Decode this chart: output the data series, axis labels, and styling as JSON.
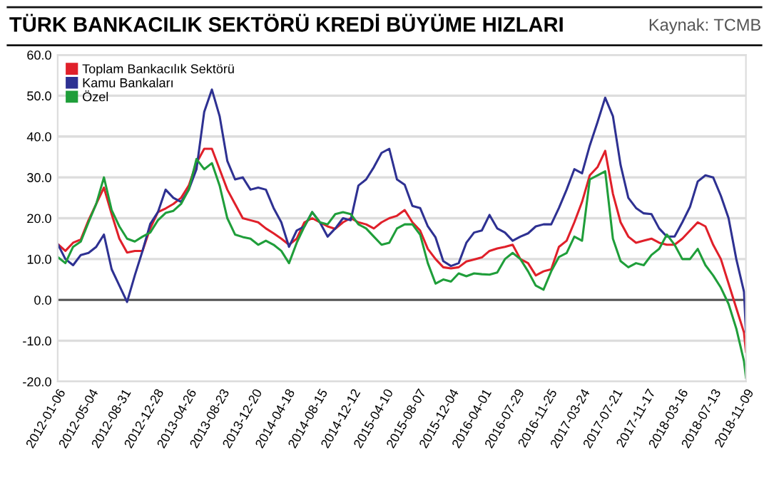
{
  "chart_data": {
    "type": "line",
    "title": "TÜRK BANKACILIK SEKTÖRÜ KREDİ BÜYÜME HIZLARI",
    "annotations": [
      "Kaynak: TCMB"
    ],
    "x": [
      "2012-01-06",
      "2012-02-03",
      "2012-03-02",
      "2012-03-30",
      "2012-04-27",
      "2012-05-25",
      "2012-06-22",
      "2012-07-20",
      "2012-08-17",
      "2012-09-14",
      "2012-10-12",
      "2012-11-09",
      "2012-12-07",
      "2013-01-04",
      "2013-02-01",
      "2013-03-01",
      "2013-03-29",
      "2013-04-26",
      "2013-05-24",
      "2013-06-21",
      "2013-07-19",
      "2013-08-16",
      "2013-09-13",
      "2013-10-11",
      "2013-11-08",
      "2013-12-06",
      "2014-01-03",
      "2014-01-31",
      "2014-02-28",
      "2014-03-28",
      "2014-04-25",
      "2014-05-23",
      "2014-06-20",
      "2014-07-18",
      "2014-08-15",
      "2014-09-12",
      "2014-10-10",
      "2014-11-07",
      "2014-12-05",
      "2015-01-02",
      "2015-01-30",
      "2015-02-27",
      "2015-03-27",
      "2015-04-24",
      "2015-05-22",
      "2015-06-19",
      "2015-07-17",
      "2015-08-14",
      "2015-09-11",
      "2015-10-09",
      "2015-11-06",
      "2015-12-04",
      "2016-01-01",
      "2016-01-29",
      "2016-02-26",
      "2016-03-25",
      "2016-04-22",
      "2016-05-20",
      "2016-06-17",
      "2016-07-15",
      "2016-08-12",
      "2016-09-09",
      "2016-10-07",
      "2016-11-04",
      "2016-12-02",
      "2016-12-30",
      "2017-01-27",
      "2017-02-24",
      "2017-03-24",
      "2017-04-21",
      "2017-05-19",
      "2017-06-16",
      "2017-07-14",
      "2017-08-11",
      "2017-09-08",
      "2017-10-06",
      "2017-11-03",
      "2017-12-01",
      "2017-12-29",
      "2018-01-26",
      "2018-02-23",
      "2018-03-23",
      "2018-04-20",
      "2018-05-18",
      "2018-06-15",
      "2018-07-13",
      "2018-08-10",
      "2018-09-07",
      "2018-10-05",
      "2018-11-02",
      "2018-11-09"
    ],
    "series": [
      {
        "name": "Toplam Bankacılık Sektörü",
        "color": "#e0202a",
        "values": [
          13.7,
          12,
          14,
          14.8,
          19.5,
          23.5,
          27.5,
          21,
          15,
          11.6,
          12,
          12,
          17.5,
          21.5,
          22.4,
          23.5,
          25,
          28,
          33.5,
          37,
          37,
          32,
          27,
          23.5,
          20,
          19.5,
          19,
          17.5,
          16.3,
          15,
          13.5,
          15,
          19,
          20,
          19,
          18,
          17.4,
          19,
          20,
          19,
          18.5,
          17.5,
          19,
          20,
          20.6,
          22,
          19,
          17,
          12.5,
          10,
          8,
          7.7,
          8,
          9.4,
          9.9,
          10.4,
          12,
          12.6,
          13,
          13.5,
          10,
          9,
          6,
          7,
          7.5,
          13,
          14.5,
          19,
          24,
          30.5,
          32.5,
          36.5,
          26,
          19,
          15.5,
          14,
          14.5,
          15,
          14,
          13.5,
          13.5,
          15,
          17,
          19,
          18,
          13.5,
          10,
          4,
          -2,
          -8,
          -12.7
        ]
      },
      {
        "name": "Kamu Bankaları",
        "color": "#2e3192",
        "values": [
          13.7,
          10,
          8.5,
          11,
          11.5,
          13,
          16,
          7.5,
          3.5,
          -0.5,
          6,
          12,
          18.6,
          21.5,
          27,
          25,
          24,
          27,
          32,
          46,
          51.5,
          45,
          34,
          29.5,
          30,
          27,
          27.5,
          27,
          22.5,
          19,
          13,
          17,
          18,
          21.5,
          19,
          15.5,
          17.5,
          20,
          19.5,
          28,
          29.5,
          32.5,
          36,
          37,
          29.5,
          28.2,
          23,
          22.5,
          18,
          15.3,
          9.5,
          8.3,
          9,
          14,
          16.5,
          17,
          20.8,
          17.5,
          16.5,
          14.5,
          15.5,
          16.3,
          18,
          18.5,
          18.5,
          22.5,
          27,
          32,
          31,
          37.8,
          43.5,
          49.5,
          45,
          33,
          25,
          22.5,
          21.2,
          21,
          17.5,
          15.5,
          15.5,
          19,
          22.8,
          29,
          30.5,
          30,
          25.5,
          20,
          10,
          2,
          -7.8
        ]
      },
      {
        "name": "Özel",
        "color": "#1f9e3a",
        "values": [
          10.5,
          9,
          13,
          14.3,
          19,
          23.5,
          30,
          22,
          18,
          15,
          14.3,
          15.5,
          16.5,
          19.5,
          21.3,
          21.8,
          23.5,
          27,
          34.5,
          32,
          33.5,
          28,
          20,
          16,
          15.4,
          15,
          13.5,
          14.5,
          13.5,
          12,
          9,
          14,
          18,
          21.5,
          19,
          18.5,
          21,
          21.5,
          21,
          18.5,
          17.5,
          15.5,
          13.5,
          14,
          17.5,
          18.5,
          18.5,
          16,
          9,
          4,
          5,
          4.5,
          6.5,
          5.8,
          6.5,
          6.3,
          6.2,
          6.7,
          10,
          11.5,
          10,
          7,
          3.5,
          2.5,
          7,
          10.5,
          11.5,
          15.5,
          14.5,
          29.5,
          30.5,
          31.5,
          15,
          9.5,
          8,
          9,
          8.5,
          11,
          12.5,
          16,
          13.5,
          10,
          10,
          12.5,
          8.5,
          6,
          3,
          -1,
          -7,
          -15,
          -19
        ]
      }
    ],
    "xlim": [
      "2012-01-06",
      "2018-11-09"
    ],
    "xticks": [
      "2012-01-06",
      "2012-05-04",
      "2012-08-31",
      "2012-12-28",
      "2013-04-26",
      "2013-08-23",
      "2013-12-20",
      "2014-04-18",
      "2014-08-15",
      "2014-12-12",
      "2015-04-10",
      "2015-08-07",
      "2015-12-04",
      "2016-04-01",
      "2016-07-29",
      "2016-11-25",
      "2017-03-24",
      "2017-07-21",
      "2017-11-17",
      "2018-03-16",
      "2018-07-13",
      "2018-11-09"
    ],
    "ylim": [
      -20,
      60
    ],
    "yticks": [
      {
        "value": -20,
        "label": "-20.0"
      },
      {
        "value": -10,
        "label": "-10.0"
      },
      {
        "value": 0,
        "label": "0.0"
      },
      {
        "value": 10,
        "label": "10.0"
      },
      {
        "value": 20,
        "label": "20.0"
      },
      {
        "value": 30,
        "label": "30.0"
      },
      {
        "value": 40,
        "label": "40.0"
      },
      {
        "value": 50,
        "label": "50.0"
      },
      {
        "value": 60,
        "label": "60.0"
      }
    ],
    "ref_lines": [
      {
        "axis": "y",
        "value": 0,
        "color": "#555555"
      }
    ],
    "grid": "y",
    "legend": "top left",
    "marker": "none",
    "line_style": "solid"
  }
}
